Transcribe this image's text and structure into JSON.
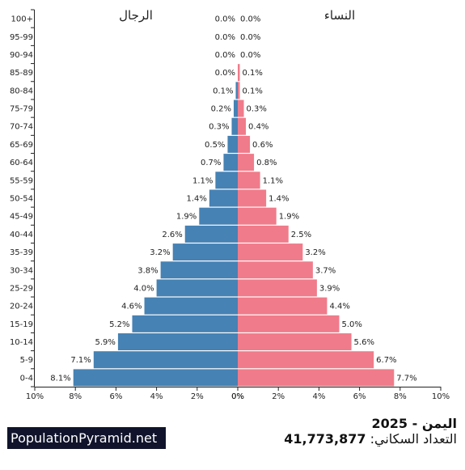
{
  "chart_data": {
    "type": "bar",
    "orientation": "horizontal",
    "layout": "population-pyramid",
    "categories": [
      "0-4",
      "5-9",
      "10-14",
      "15-19",
      "20-24",
      "25-29",
      "30-34",
      "35-39",
      "40-44",
      "45-49",
      "50-54",
      "55-59",
      "60-64",
      "65-69",
      "70-74",
      "75-79",
      "80-84",
      "85-89",
      "90-94",
      "95-99",
      "100+"
    ],
    "series": [
      {
        "name": "الرجال",
        "side": "left",
        "color": "#4682b4",
        "values": [
          8.1,
          7.1,
          5.9,
          5.2,
          4.6,
          4.0,
          3.8,
          3.2,
          2.6,
          1.9,
          1.4,
          1.1,
          0.7,
          0.5,
          0.3,
          0.2,
          0.1,
          0.0,
          0.0,
          0.0,
          0.0
        ],
        "labels": [
          "8.1%",
          "7.1%",
          "5.9%",
          "5.2%",
          "4.6%",
          "4.0%",
          "3.8%",
          "3.2%",
          "2.6%",
          "1.9%",
          "1.4%",
          "1.1%",
          "0.7%",
          "0.5%",
          "0.3%",
          "0.2%",
          "0.1%",
          "0.0%",
          "0.0%",
          "0.0%",
          "0.0%"
        ]
      },
      {
        "name": "النساء",
        "side": "right",
        "color": "#f07b8a",
        "values": [
          7.7,
          6.7,
          5.6,
          5.0,
          4.4,
          3.9,
          3.7,
          3.2,
          2.5,
          1.9,
          1.4,
          1.1,
          0.8,
          0.6,
          0.4,
          0.3,
          0.1,
          0.1,
          0.0,
          0.0,
          0.0
        ],
        "labels": [
          "7.7%",
          "6.7%",
          "5.6%",
          "5.0%",
          "4.4%",
          "3.9%",
          "3.7%",
          "3.2%",
          "2.5%",
          "1.9%",
          "1.4%",
          "1.1%",
          "0.8%",
          "0.6%",
          "0.4%",
          "0.3%",
          "0.1%",
          "0.1%",
          "0.0%",
          "0.0%",
          "0.0%"
        ]
      }
    ],
    "xlim": [
      0,
      10
    ],
    "left_ticks": [
      "10%",
      "8%",
      "6%",
      "4%",
      "2%",
      "0%"
    ],
    "right_ticks": [
      "0%",
      "2%",
      "4%",
      "6%",
      "8%",
      "10%"
    ],
    "grid": false
  },
  "footer": {
    "brand": "PopulationPyramid.net",
    "country_year": "اليمن - 2025",
    "population_label": "التعداد السكاني:",
    "population_value": "41,773,877"
  }
}
